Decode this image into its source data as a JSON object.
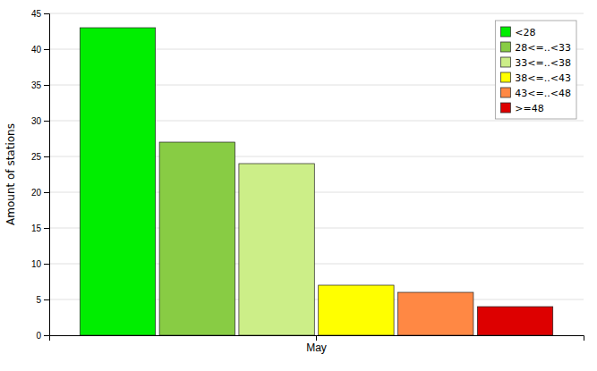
{
  "chart_data": {
    "type": "bar",
    "xlabel": null,
    "ylabel": "Amount of stations",
    "categories": [
      "May"
    ],
    "series": [
      {
        "name": "<28",
        "color": "#00ee00",
        "values": [
          43
        ]
      },
      {
        "name": "28<=..<33",
        "color": "#88cc44",
        "values": [
          27
        ]
      },
      {
        "name": "33<=..<38",
        "color": "#ccee88",
        "values": [
          24
        ]
      },
      {
        "name": "38<=..<43",
        "color": "#ffff00",
        "values": [
          7
        ]
      },
      {
        "name": "43<=..<48",
        "color": "#ff8844",
        "values": [
          6
        ]
      },
      {
        "name": ">=48",
        "color": "#dd0000",
        "values": [
          4
        ]
      }
    ],
    "ylim": [
      0,
      45
    ],
    "yticks": [
      0,
      5,
      10,
      15,
      20,
      25,
      30,
      35,
      40,
      45
    ],
    "grid": true,
    "legend": "upper right"
  }
}
